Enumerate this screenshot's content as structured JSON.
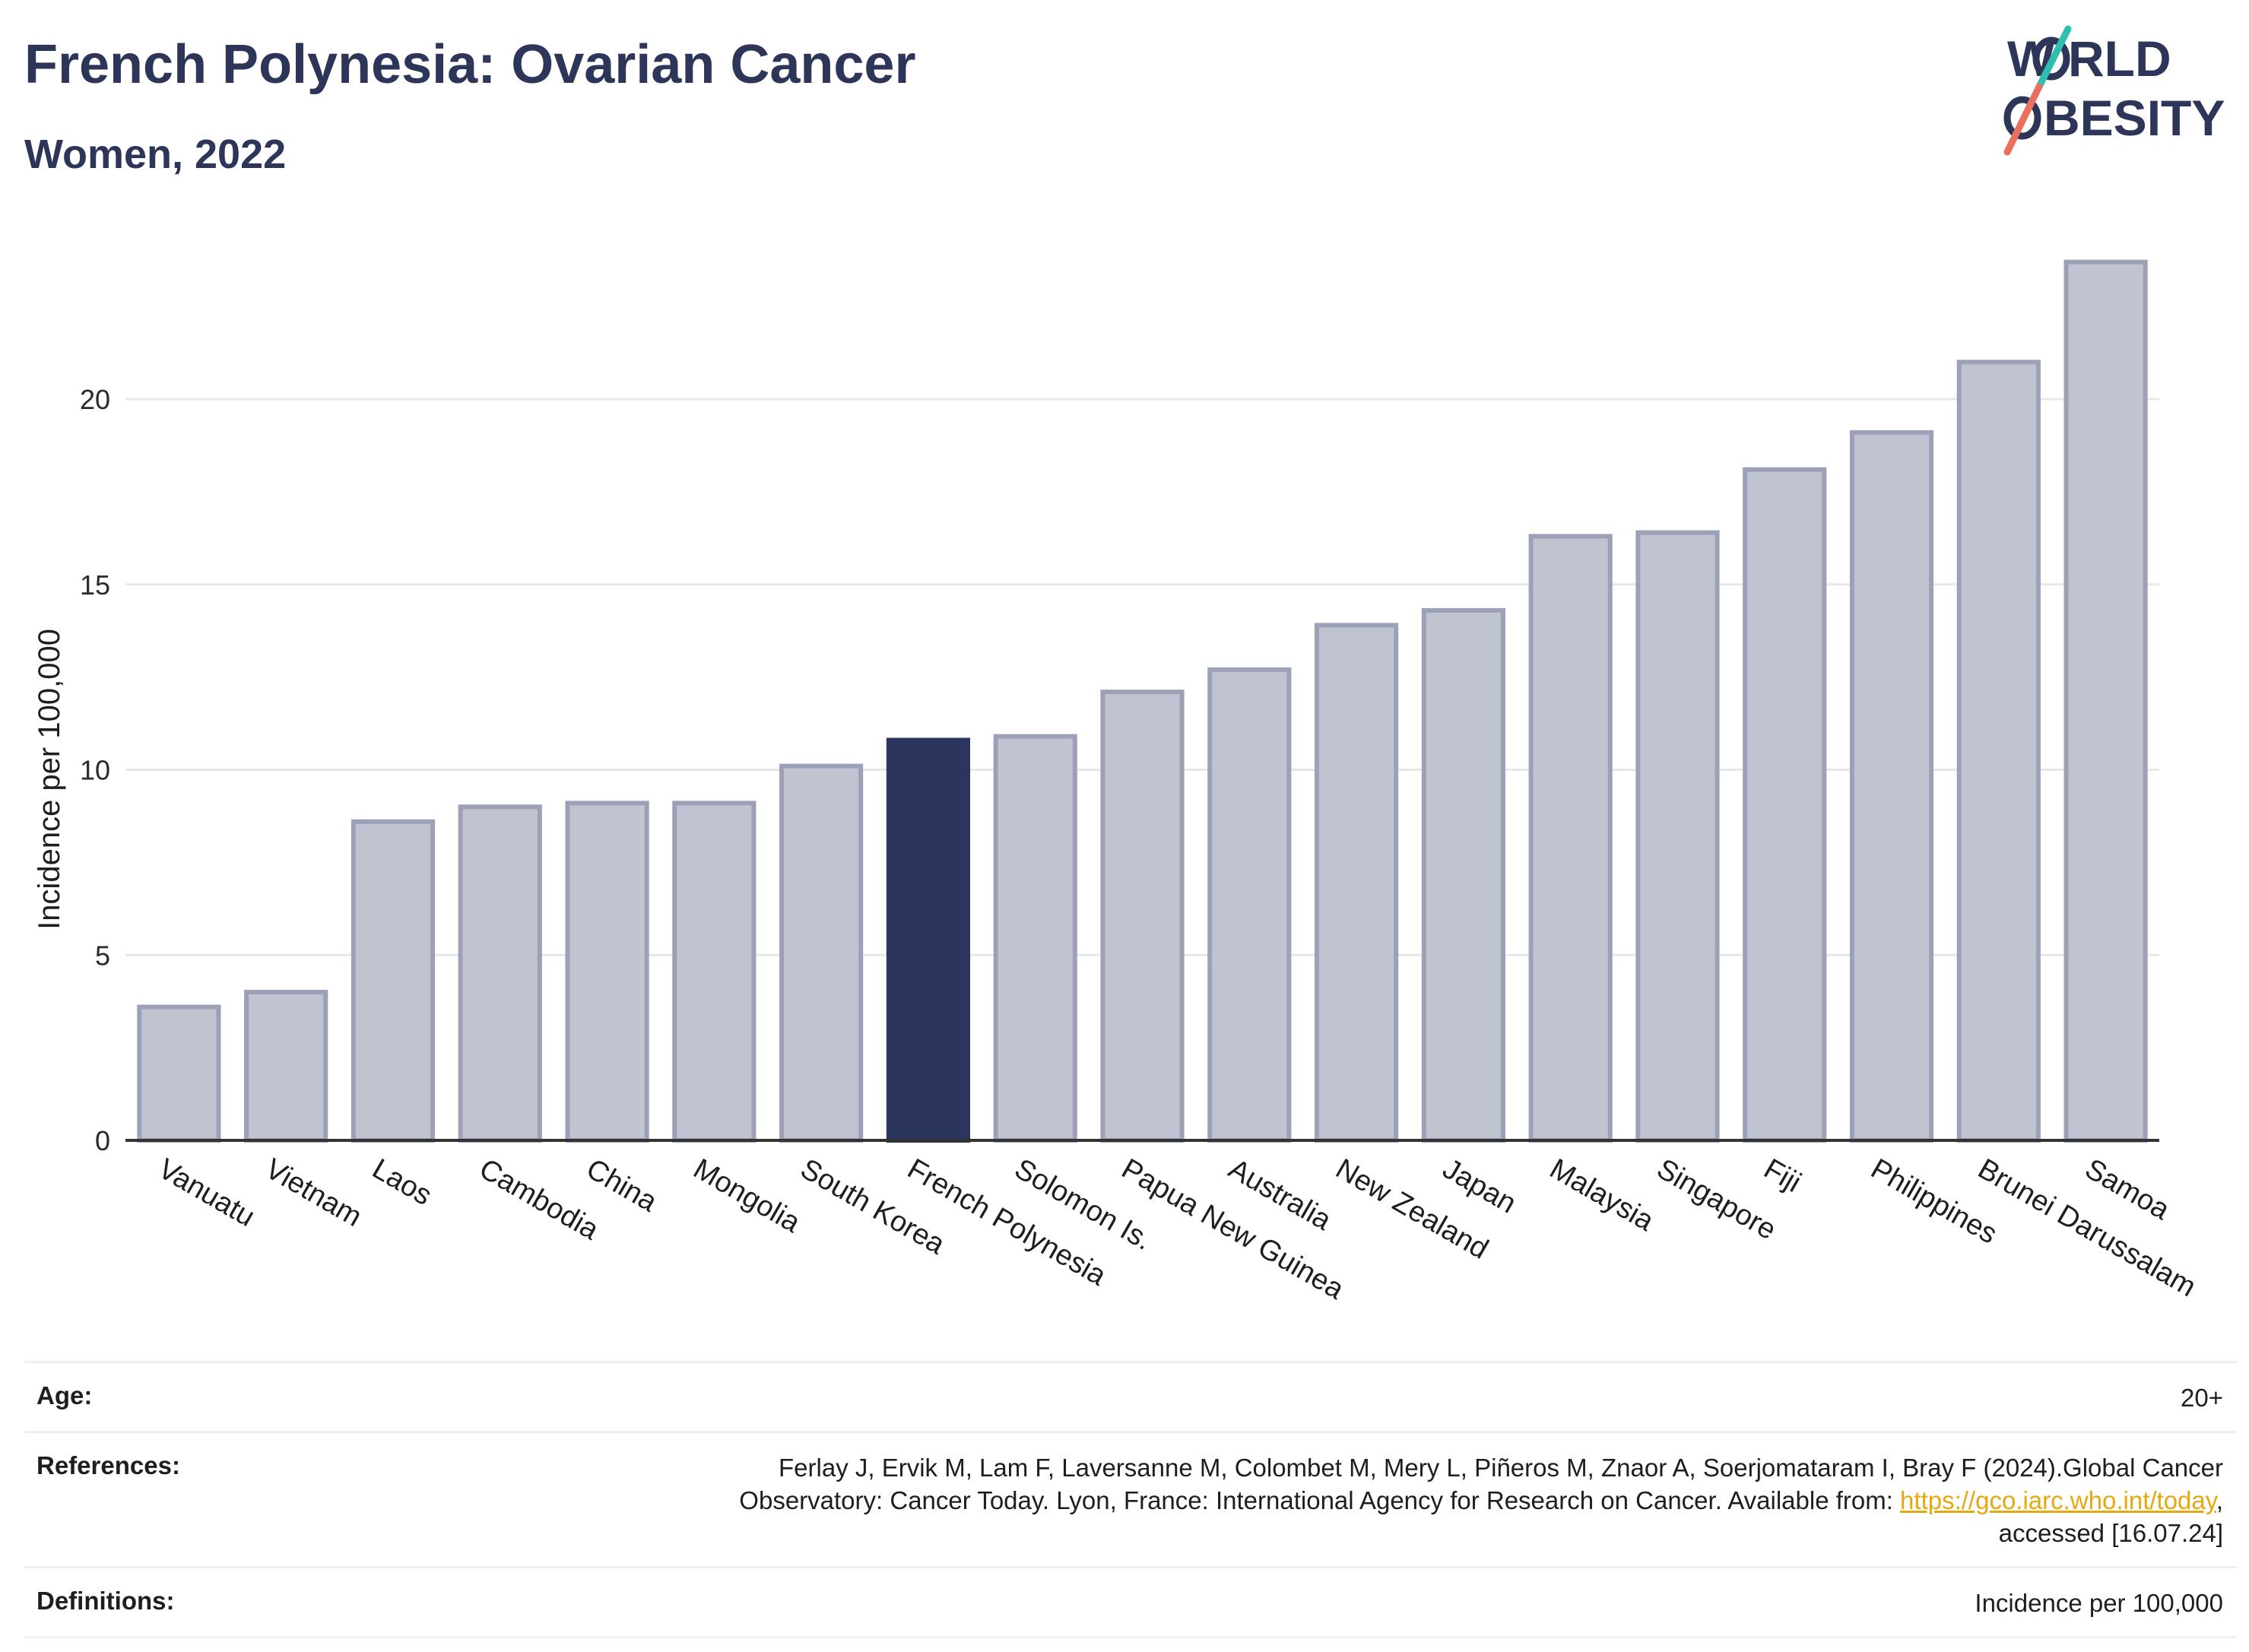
{
  "header": {
    "title": "French Polynesia: Ovarian Cancer",
    "subtitle": "Women, 2022"
  },
  "logo": {
    "line1": "WORLD",
    "line2": "OBESITY"
  },
  "colors": {
    "bar_default": "#c0c3d0",
    "bar_border": "#9ca1b8",
    "bar_highlight": "#2b355e",
    "text_primary": "#2d3658",
    "link": "#e5a90f",
    "logo_teal": "#2ebfb0",
    "logo_coral": "#e8705f"
  },
  "chart_data": {
    "type": "bar",
    "ylabel": "Incidence per 100,000",
    "xlabel": "",
    "ylim": [
      0,
      24
    ],
    "yticks": [
      0,
      5,
      10,
      15,
      20
    ],
    "grid": true,
    "highlight": "French Polynesia",
    "categories": [
      "Vanuatu",
      "Vietnam",
      "Laos",
      "Cambodia",
      "China",
      "Mongolia",
      "South Korea",
      "French Polynesia",
      "Solomon Is.",
      "Papua New Guinea",
      "Australia",
      "New Zealand",
      "Japan",
      "Malaysia",
      "Singapore",
      "Fiji",
      "Philippines",
      "Brunei Darussalam",
      "Samoa"
    ],
    "values": [
      3.6,
      4.0,
      8.6,
      9.0,
      9.1,
      9.1,
      10.1,
      10.8,
      10.9,
      12.1,
      12.7,
      13.9,
      14.3,
      16.3,
      16.4,
      18.1,
      19.1,
      21.0,
      23.7
    ]
  },
  "info": {
    "age_label": "Age:",
    "age_value": "20+",
    "references_label": "References:",
    "references_line1": "Ferlay J, Ervik M, Lam F, Laversanne M, Colombet M, Mery L, Piñeros M, Znaor A, Soerjomataram I, Bray F (2024).Global Cancer",
    "references_line2_pre": "Observatory: Cancer Today. Lyon, France: International Agency for Research on Cancer. Available from: ",
    "references_link": "https://gco.iarc.who.int/today",
    "references_line2_post": ",",
    "references_line3": "accessed [16.07.24]",
    "definitions_label": "Definitions:",
    "definitions_value": "Incidence per 100,000"
  }
}
